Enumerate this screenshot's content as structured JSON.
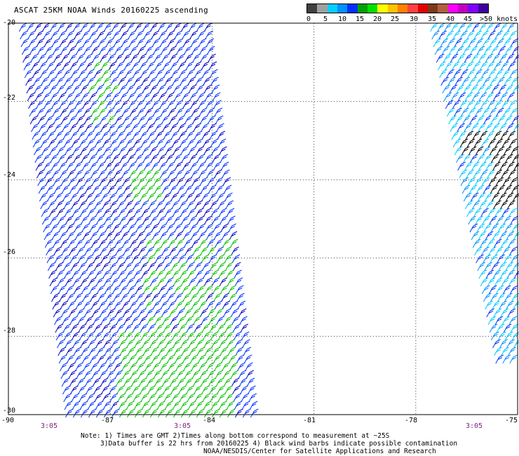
{
  "title": "ASCAT 25KM NOAA Winds 20160225 ascending",
  "legend": {
    "colors": [
      "#404040",
      "#a0a0a0",
      "#00d0ff",
      "#0090ff",
      "#0030ff",
      "#00a000",
      "#00e000",
      "#ffff00",
      "#ffc000",
      "#ff8000",
      "#ff4040",
      "#e00000",
      "#7a3a1a",
      "#b06040",
      "#ff00ff",
      "#c000c0",
      "#8000ff",
      "#4000a0"
    ],
    "labels": [
      "0",
      "5",
      "10",
      "15",
      "20",
      "25",
      "30",
      "35",
      "40",
      "45",
      ">50 knots"
    ]
  },
  "axes": {
    "lat_labels": [
      "-20",
      "-22",
      "-24",
      "-26",
      "-28",
      "-30"
    ],
    "lon_labels": [
      "-90",
      "-87",
      "-84",
      "-81",
      "-78",
      "-75"
    ]
  },
  "times": [
    "3:05",
    "3:05",
    "3:05"
  ],
  "notes": {
    "line1": "Note: 1) Times are GMT 2)Times along bottom correspond to measurement at ~25S",
    "line2": "3)Data buffer is 22 hrs from 20160225 4) Black wind barbs indicate possible contamination",
    "credit": "NOAA/NESDIS/Center for Satellite Applications and Research"
  },
  "map": {
    "lon_range": [
      -90,
      -75
    ],
    "lat_range": [
      -30,
      -20
    ],
    "swaths": [
      {
        "name": "west-swath",
        "speed_class": "15-20 knots",
        "colors": [
          "#0030ff",
          "#0000c0",
          "#00c000"
        ]
      },
      {
        "name": "east-swath",
        "speed_class": "10-15 knots",
        "colors": [
          "#00c8ff",
          "#0090ff",
          "#0030ff"
        ]
      }
    ],
    "contamination_color": "#000000"
  }
}
